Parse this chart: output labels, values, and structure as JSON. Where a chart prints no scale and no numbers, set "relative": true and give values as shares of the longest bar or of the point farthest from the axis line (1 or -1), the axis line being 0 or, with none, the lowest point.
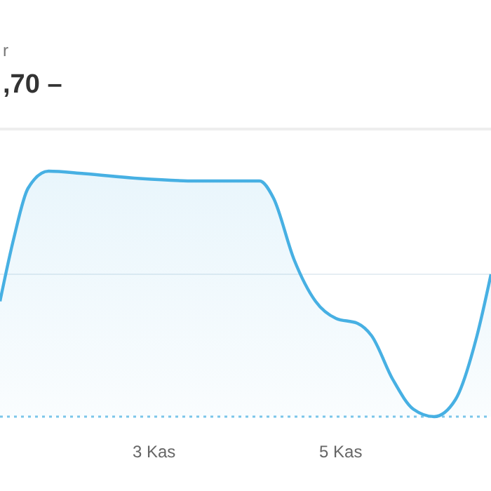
{
  "chart_data": {
    "type": "area",
    "title": ",70 –",
    "annotations": [
      "r"
    ],
    "relative": true,
    "color": "#47b0e3",
    "x": [
      1.35,
      1.5,
      1.65,
      1.87,
      2.25,
      2.85,
      3.45,
      4.13,
      4.28,
      4.5,
      4.73,
      4.95,
      5.18,
      5.33,
      5.56,
      5.78,
      6.0,
      6.23,
      6.46,
      6.61
    ],
    "values": [
      0.47,
      0.73,
      0.93,
      1,
      0.99,
      0.97,
      0.96,
      0.96,
      0.89,
      0.64,
      0.47,
      0.4,
      0.38,
      0.33,
      0.15,
      0.03,
      0,
      0.07,
      0.33,
      0.58
    ],
    "xlim": [
      1.35,
      6.61
    ],
    "xticks": [
      {
        "value": 3,
        "label": "3 Kas"
      },
      {
        "value": 5,
        "label": "5 Kas"
      }
    ],
    "ref_lines": [
      {
        "axis": "y",
        "value": 0.58,
        "color": "#e6eef3",
        "line_style": "solid"
      },
      {
        "axis": "y",
        "value": 0,
        "color": "#7cc6ea",
        "line_style": "dotted"
      }
    ]
  }
}
